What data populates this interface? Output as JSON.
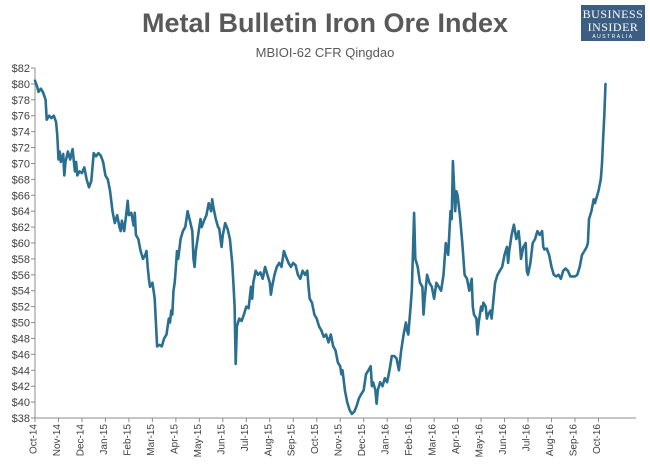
{
  "chart_data": {
    "type": "line",
    "title": "Metal Bulletin Iron Ore Index",
    "subtitle": "MBIOI-62 CFR Qingdao",
    "xlabel": "",
    "ylabel": "",
    "ylim": [
      38,
      82
    ],
    "y_step": 2,
    "y_prefix": "$",
    "x_range": [
      0,
      25.6
    ],
    "categories": [
      "Oct-14",
      "Nov-14",
      "Dec-14",
      "Jan-15",
      "Feb-15",
      "Mar-15",
      "Apr-15",
      "May-15",
      "Jun-15",
      "Jul-15",
      "Aug-15",
      "Sep-15",
      "Oct-15",
      "Nov-15",
      "Dec-15",
      "Jan-16",
      "Feb-16",
      "Mar-16",
      "Apr-16",
      "May-16",
      "Jun-16",
      "Jul-16",
      "Aug-16",
      "Sep-16",
      "Oct-16"
    ],
    "grid": false,
    "line_color": "#2a6f8f",
    "series": [
      {
        "name": "MBIOI-62 CFR Qingdao",
        "points": [
          [
            0.0,
            80.4
          ],
          [
            0.1,
            79.6
          ],
          [
            0.15,
            79.0
          ],
          [
            0.25,
            79.4
          ],
          [
            0.35,
            78.9
          ],
          [
            0.45,
            78.0
          ],
          [
            0.5,
            75.5
          ],
          [
            0.6,
            76.0
          ],
          [
            0.7,
            75.7
          ],
          [
            0.8,
            76.0
          ],
          [
            0.9,
            75.2
          ],
          [
            0.95,
            73.5
          ],
          [
            1.0,
            70.5
          ],
          [
            1.05,
            71.5
          ],
          [
            1.1,
            70.2
          ],
          [
            1.15,
            70.5
          ],
          [
            1.2,
            71.2
          ],
          [
            1.25,
            68.5
          ],
          [
            1.3,
            70.2
          ],
          [
            1.4,
            71.5
          ],
          [
            1.5,
            70.5
          ],
          [
            1.6,
            71.8
          ],
          [
            1.7,
            69.0
          ],
          [
            1.75,
            70.2
          ],
          [
            1.8,
            68.5
          ],
          [
            1.9,
            69.0
          ],
          [
            2.0,
            68.8
          ],
          [
            2.1,
            69.5
          ],
          [
            2.2,
            68.0
          ],
          [
            2.3,
            67.0
          ],
          [
            2.4,
            67.8
          ],
          [
            2.5,
            71.3
          ],
          [
            2.6,
            70.9
          ],
          [
            2.7,
            71.3
          ],
          [
            2.8,
            71.0
          ],
          [
            2.9,
            70.2
          ],
          [
            3.0,
            68.5
          ],
          [
            3.1,
            68.0
          ],
          [
            3.2,
            66.5
          ],
          [
            3.3,
            64.0
          ],
          [
            3.4,
            62.5
          ],
          [
            3.5,
            63.5
          ],
          [
            3.6,
            62.0
          ],
          [
            3.65,
            61.5
          ],
          [
            3.7,
            62.8
          ],
          [
            3.8,
            61.5
          ],
          [
            3.9,
            64.0
          ],
          [
            3.95,
            65.3
          ],
          [
            4.0,
            63.5
          ],
          [
            4.1,
            63.8
          ],
          [
            4.2,
            62.2
          ],
          [
            4.25,
            63.8
          ],
          [
            4.3,
            61.0
          ],
          [
            4.4,
            60.5
          ],
          [
            4.5,
            59.0
          ],
          [
            4.6,
            58.0
          ],
          [
            4.7,
            58.5
          ],
          [
            4.75,
            59.0
          ],
          [
            4.8,
            57.0
          ],
          [
            4.85,
            55.5
          ],
          [
            4.9,
            54.5
          ],
          [
            5.0,
            55.0
          ],
          [
            5.05,
            54.0
          ],
          [
            5.1,
            53.0
          ],
          [
            5.15,
            50.0
          ],
          [
            5.2,
            47.0
          ],
          [
            5.3,
            47.2
          ],
          [
            5.4,
            47.0
          ],
          [
            5.5,
            48.0
          ],
          [
            5.6,
            48.5
          ],
          [
            5.7,
            50.5
          ],
          [
            5.75,
            50.0
          ],
          [
            5.8,
            51.5
          ],
          [
            5.85,
            51.0
          ],
          [
            5.9,
            54.0
          ],
          [
            5.95,
            55.0
          ],
          [
            6.0,
            57.0
          ],
          [
            6.05,
            59.0
          ],
          [
            6.1,
            58.0
          ],
          [
            6.2,
            60.5
          ],
          [
            6.3,
            61.5
          ],
          [
            6.4,
            62.0
          ],
          [
            6.5,
            64.0
          ],
          [
            6.6,
            62.8
          ],
          [
            6.7,
            61.5
          ],
          [
            6.75,
            58.0
          ],
          [
            6.8,
            57.0
          ],
          [
            6.85,
            59.0
          ],
          [
            6.9,
            60.0
          ],
          [
            7.0,
            62.0
          ],
          [
            7.05,
            63.0
          ],
          [
            7.1,
            62.0
          ],
          [
            7.2,
            62.8
          ],
          [
            7.3,
            63.5
          ],
          [
            7.4,
            65.0
          ],
          [
            7.5,
            64.0
          ],
          [
            7.55,
            65.5
          ],
          [
            7.6,
            64.5
          ],
          [
            7.7,
            63.0
          ],
          [
            7.8,
            62.0
          ],
          [
            7.85,
            61.8
          ],
          [
            7.9,
            60.5
          ],
          [
            7.95,
            59.5
          ],
          [
            8.0,
            61.0
          ],
          [
            8.1,
            62.5
          ],
          [
            8.2,
            61.8
          ],
          [
            8.3,
            60.5
          ],
          [
            8.4,
            57.5
          ],
          [
            8.45,
            55.0
          ],
          [
            8.5,
            52.0
          ],
          [
            8.55,
            44.8
          ],
          [
            8.6,
            49.5
          ],
          [
            8.7,
            50.5
          ],
          [
            8.8,
            50.2
          ],
          [
            8.9,
            51.0
          ],
          [
            9.0,
            52.0
          ],
          [
            9.1,
            51.8
          ],
          [
            9.2,
            54.5
          ],
          [
            9.25,
            53.0
          ],
          [
            9.3,
            55.0
          ],
          [
            9.4,
            56.5
          ],
          [
            9.5,
            56.0
          ],
          [
            9.6,
            56.3
          ],
          [
            9.7,
            55.5
          ],
          [
            9.8,
            57.0
          ],
          [
            9.9,
            56.0
          ],
          [
            10.0,
            55.0
          ],
          [
            10.05,
            53.5
          ],
          [
            10.1,
            54.5
          ],
          [
            10.2,
            56.0
          ],
          [
            10.3,
            57.0
          ],
          [
            10.4,
            57.5
          ],
          [
            10.5,
            57.0
          ],
          [
            10.6,
            59.0
          ],
          [
            10.7,
            58.2
          ],
          [
            10.8,
            57.5
          ],
          [
            10.9,
            57.0
          ],
          [
            11.0,
            57.5
          ],
          [
            11.1,
            57.2
          ],
          [
            11.2,
            56.0
          ],
          [
            11.3,
            55.5
          ],
          [
            11.4,
            56.5
          ],
          [
            11.5,
            56.0
          ],
          [
            11.6,
            56.5
          ],
          [
            11.65,
            54.5
          ],
          [
            11.7,
            53.0
          ],
          [
            11.8,
            52.5
          ],
          [
            11.9,
            51.0
          ],
          [
            12.0,
            50.5
          ],
          [
            12.1,
            49.5
          ],
          [
            12.2,
            49.0
          ],
          [
            12.3,
            48.2
          ],
          [
            12.4,
            48.5
          ],
          [
            12.5,
            47.5
          ],
          [
            12.6,
            48.5
          ],
          [
            12.7,
            47.0
          ],
          [
            12.8,
            46.5
          ],
          [
            12.9,
            45.0
          ],
          [
            13.0,
            44.5
          ],
          [
            13.05,
            43.5
          ],
          [
            13.1,
            44.0
          ],
          [
            13.2,
            41.5
          ],
          [
            13.3,
            40.0
          ],
          [
            13.4,
            39.0
          ],
          [
            13.5,
            38.5
          ],
          [
            13.6,
            38.8
          ],
          [
            13.7,
            39.5
          ],
          [
            13.8,
            40.5
          ],
          [
            13.9,
            41.0
          ],
          [
            14.0,
            41.5
          ],
          [
            14.1,
            43.5
          ],
          [
            14.2,
            44.0
          ],
          [
            14.3,
            44.5
          ],
          [
            14.35,
            42.0
          ],
          [
            14.4,
            42.5
          ],
          [
            14.5,
            41.5
          ],
          [
            14.55,
            39.8
          ],
          [
            14.6,
            41.5
          ],
          [
            14.7,
            42.5
          ],
          [
            14.8,
            42.0
          ],
          [
            14.9,
            43.0
          ],
          [
            15.0,
            42.5
          ],
          [
            15.1,
            44.0
          ],
          [
            15.2,
            45.8
          ],
          [
            15.3,
            45.8
          ],
          [
            15.4,
            45.5
          ],
          [
            15.5,
            44.0
          ],
          [
            15.6,
            46.5
          ],
          [
            15.7,
            48.5
          ],
          [
            15.8,
            50.0
          ],
          [
            15.85,
            49.0
          ],
          [
            15.9,
            48.5
          ],
          [
            16.0,
            52.0
          ],
          [
            16.05,
            54.0
          ],
          [
            16.1,
            59.0
          ],
          [
            16.15,
            63.8
          ],
          [
            16.2,
            58.0
          ],
          [
            16.3,
            57.0
          ],
          [
            16.4,
            55.0
          ],
          [
            16.5,
            54.5
          ],
          [
            16.55,
            51.0
          ],
          [
            16.6,
            53.0
          ],
          [
            16.7,
            56.0
          ],
          [
            16.8,
            55.0
          ],
          [
            16.9,
            54.5
          ],
          [
            17.0,
            53.0
          ],
          [
            17.1,
            55.0
          ],
          [
            17.2,
            54.5
          ],
          [
            17.3,
            54.0
          ],
          [
            17.4,
            56.0
          ],
          [
            17.5,
            60.0
          ],
          [
            17.6,
            58.5
          ],
          [
            17.7,
            64.0
          ],
          [
            17.75,
            63.0
          ],
          [
            17.8,
            70.3
          ],
          [
            17.85,
            67.0
          ],
          [
            17.9,
            64.0
          ],
          [
            17.95,
            66.5
          ],
          [
            18.0,
            66.0
          ],
          [
            18.1,
            63.5
          ],
          [
            18.2,
            60.0
          ],
          [
            18.3,
            56.0
          ],
          [
            18.4,
            55.5
          ],
          [
            18.5,
            54.0
          ],
          [
            18.6,
            55.5
          ],
          [
            18.65,
            52.0
          ],
          [
            18.7,
            51.0
          ],
          [
            18.8,
            50.5
          ],
          [
            18.85,
            48.5
          ],
          [
            18.9,
            50.0
          ],
          [
            19.0,
            52.0
          ],
          [
            19.05,
            51.5
          ],
          [
            19.1,
            52.5
          ],
          [
            19.2,
            52.0
          ],
          [
            19.25,
            50.5
          ],
          [
            19.3,
            51.0
          ],
          [
            19.4,
            51.5
          ],
          [
            19.45,
            50.5
          ],
          [
            19.5,
            52.0
          ],
          [
            19.6,
            55.0
          ],
          [
            19.7,
            56.0
          ],
          [
            19.8,
            56.5
          ],
          [
            19.9,
            57.0
          ],
          [
            20.0,
            58.5
          ],
          [
            20.1,
            59.5
          ],
          [
            20.15,
            57.5
          ],
          [
            20.2,
            59.0
          ],
          [
            20.3,
            61.0
          ],
          [
            20.4,
            62.3
          ],
          [
            20.5,
            60.5
          ],
          [
            20.6,
            61.5
          ],
          [
            20.65,
            60.0
          ],
          [
            20.7,
            58.0
          ],
          [
            20.8,
            59.5
          ],
          [
            20.9,
            60.0
          ],
          [
            20.95,
            56.5
          ],
          [
            21.0,
            56.0
          ],
          [
            21.1,
            57.5
          ],
          [
            21.2,
            60.0
          ],
          [
            21.3,
            60.5
          ],
          [
            21.4,
            61.5
          ],
          [
            21.5,
            61.0
          ],
          [
            21.6,
            61.5
          ],
          [
            21.65,
            59.5
          ],
          [
            21.7,
            59.2
          ],
          [
            21.8,
            59.3
          ],
          [
            21.9,
            58.5
          ],
          [
            22.0,
            57.0
          ],
          [
            22.1,
            56.0
          ],
          [
            22.2,
            55.8
          ],
          [
            22.3,
            56.0
          ],
          [
            22.4,
            55.5
          ],
          [
            22.5,
            56.5
          ],
          [
            22.6,
            56.8
          ],
          [
            22.7,
            56.5
          ],
          [
            22.8,
            55.8
          ],
          [
            22.9,
            55.8
          ],
          [
            23.0,
            55.8
          ],
          [
            23.1,
            56.0
          ],
          [
            23.2,
            57.0
          ],
          [
            23.3,
            58.5
          ],
          [
            23.4,
            59.0
          ],
          [
            23.5,
            59.5
          ],
          [
            23.55,
            60.0
          ],
          [
            23.6,
            63.0
          ],
          [
            23.7,
            64.0
          ],
          [
            23.8,
            65.5
          ],
          [
            23.85,
            65.0
          ],
          [
            23.9,
            65.5
          ],
          [
            24.0,
            66.5
          ],
          [
            24.1,
            68.0
          ],
          [
            24.15,
            70.0
          ],
          [
            24.2,
            73.0
          ],
          [
            24.25,
            76.0
          ],
          [
            24.3,
            80.0
          ]
        ]
      }
    ]
  }
}
